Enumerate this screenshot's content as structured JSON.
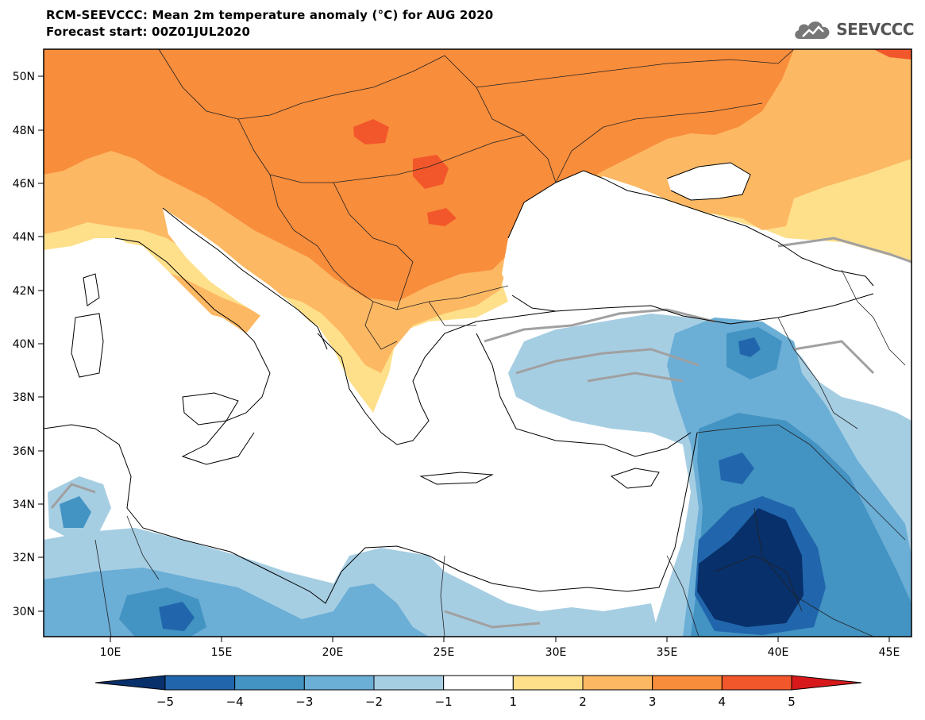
{
  "header": {
    "title_line1": "RCM-SEEVCCC: Mean 2m temperature anomaly (°C) for AUG 2020",
    "title_line2": "Forecast start: 00Z01JUL2020"
  },
  "logo": {
    "text": "SEEVCCC",
    "icon": "cloud-icon"
  },
  "map": {
    "lon_range": [
      7,
      46
    ],
    "lat_range": [
      29,
      51
    ],
    "lat_ticks": [
      "50N",
      "48N",
      "46N",
      "44N",
      "42N",
      "40N",
      "38N",
      "36N",
      "34N",
      "32N",
      "30N"
    ],
    "lon_ticks": [
      "10E",
      "15E",
      "20E",
      "25E",
      "30E",
      "35E",
      "40E",
      "45E"
    ]
  },
  "colorbar": {
    "labels": [
      "−5",
      "−4",
      "−3",
      "−2",
      "−1",
      "1",
      "2",
      "3",
      "4",
      "5"
    ],
    "colors": [
      "#08306b",
      "#2166ac",
      "#4393c3",
      "#6baed6",
      "#a6cee3",
      "#ffffff",
      "#fee08b",
      "#fdb863",
      "#f88d3c",
      "#f2572b",
      "#d7191c"
    ]
  },
  "palette": {
    "sea": "#ffffff",
    "border": "#000000",
    "contour": "#a0a0a0",
    "warm1": "#fee08b",
    "warm2": "#fdb863",
    "warm3": "#f88d3c",
    "warm4": "#f2572b",
    "cool1": "#a6cee3",
    "cool2": "#6baed6",
    "cool3": "#4393c3",
    "cool4": "#2166ac",
    "cool5": "#08306b"
  }
}
